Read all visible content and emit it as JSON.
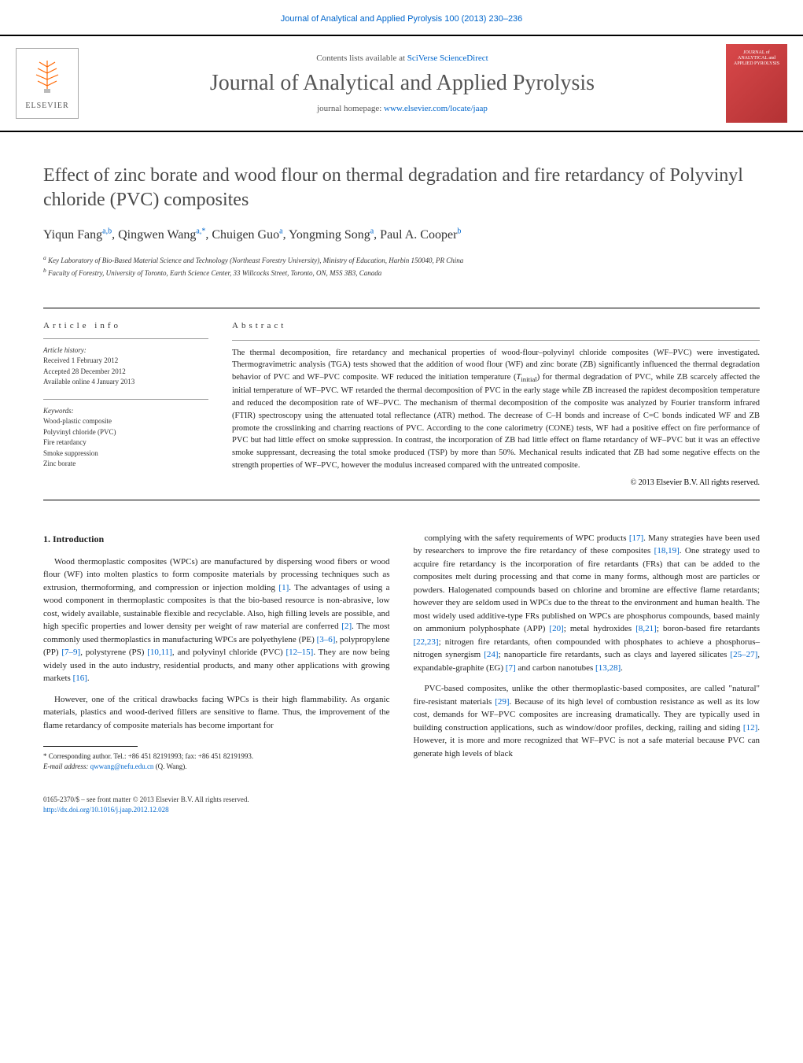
{
  "header": {
    "citation": "Journal of Analytical and Applied Pyrolysis 100 (2013) 230–236",
    "contents_prefix": "Contents lists available at ",
    "contents_link": "SciVerse ScienceDirect",
    "journal_name": "Journal of Analytical and Applied Pyrolysis",
    "homepage_prefix": "journal homepage: ",
    "homepage_url": "www.elsevier.com/locate/jaap",
    "publisher": "ELSEVIER",
    "cover_text": "JOURNAL of ANALYTICAL and APPLIED PYROLYSIS"
  },
  "article": {
    "title": "Effect of zinc borate and wood flour on thermal degradation and fire retardancy of Polyvinyl chloride (PVC) composites",
    "authors_html": "Yiqun Fang",
    "author_list": [
      {
        "name": "Yiqun Fang",
        "sup": "a,b"
      },
      {
        "name": "Qingwen Wang",
        "sup": "a,*"
      },
      {
        "name": "Chuigen Guo",
        "sup": "a"
      },
      {
        "name": "Yongming Song",
        "sup": "a"
      },
      {
        "name": "Paul A. Cooper",
        "sup": "b"
      }
    ],
    "affiliations": [
      "Key Laboratory of Bio-Based Material Science and Technology (Northeast Forestry University), Ministry of Education, Harbin 150040, PR China",
      "Faculty of Forestry, University of Toronto, Earth Science Center, 33 Willcocks Street, Toronto, ON, M5S 3B3, Canada"
    ]
  },
  "info": {
    "heading": "article info",
    "history_label": "Article history:",
    "received": "Received 1 February 2012",
    "accepted": "Accepted 28 December 2012",
    "online": "Available online 4 January 2013",
    "keywords_label": "Keywords:",
    "keywords": [
      "Wood-plastic composite",
      "Polyvinyl chloride (PVC)",
      "Fire retardancy",
      "Smoke suppression",
      "Zinc borate"
    ]
  },
  "abstract": {
    "heading": "abstract",
    "text": "The thermal decomposition, fire retardancy and mechanical properties of wood-flour–polyvinyl chloride composites (WF–PVC) were investigated. Thermogravimetric analysis (TGA) tests showed that the addition of wood flour (WF) and zinc borate (ZB) significantly influenced the thermal degradation behavior of PVC and WF–PVC composite. WF reduced the initiation temperature (Tinitial) for thermal degradation of PVC, while ZB scarcely affected the initial temperature of WF–PVC. WF retarded the thermal decomposition of PVC in the early stage while ZB increased the rapidest decomposition temperature and reduced the decomposition rate of WF–PVC. The mechanism of thermal decomposition of the composite was analyzed by Fourier transform infrared (FTIR) spectroscopy using the attenuated total reflectance (ATR) method. The decrease of C–H bonds and increase of C=C bonds indicated WF and ZB promote the crosslinking and charring reactions of PVC. According to the cone calorimetry (CONE) tests, WF had a positive effect on fire performance of PVC but had little effect on smoke suppression. In contrast, the incorporation of ZB had little effect on flame retardancy of WF–PVC but it was an effective smoke suppressant, decreasing the total smoke produced (TSP) by more than 50%. Mechanical results indicated that ZB had some negative effects on the strength properties of WF–PVC, however the modulus increased compared with the untreated composite.",
    "copyright": "© 2013 Elsevier B.V. All rights reserved."
  },
  "body": {
    "section_num": "1.",
    "section_title": "Introduction",
    "left_paras": [
      "Wood thermoplastic composites (WPCs) are manufactured by dispersing wood fibers or wood flour (WF) into molten plastics to form composite materials by processing techniques such as extrusion, thermoforming, and compression or injection molding [1]. The advantages of using a wood component in thermoplastic composites is that the bio-based resource is non-abrasive, low cost, widely available, sustainable flexible and recyclable. Also, high filling levels are possible, and high specific properties and lower density per weight of raw material are conferred [2]. The most commonly used thermoplastics in manufacturing WPCs are polyethylene (PE) [3–6], polypropylene (PP) [7–9], polystyrene (PS) [10,11], and polyvinyl chloride (PVC) [12–15]. They are now being widely used in the auto industry, residential products, and many other applications with growing markets [16].",
      "However, one of the critical drawbacks facing WPCs is their high flammability. As organic materials, plastics and wood-derived fillers are sensitive to flame. Thus, the improvement of the flame retardancy of composite materials has become important for"
    ],
    "right_paras": [
      "complying with the safety requirements of WPC products [17]. Many strategies have been used by researchers to improve the fire retardancy of these composites [18,19]. One strategy used to acquire fire retardancy is the incorporation of fire retardants (FRs) that can be added to the composites melt during processing and that come in many forms, although most are particles or powders. Halogenated compounds based on chlorine and bromine are effective flame retardants; however they are seldom used in WPCs due to the threat to the environment and human health. The most widely used additive-type FRs published on WPCs are phosphorus compounds, based mainly on ammonium polyphosphate (APP) [20]; metal hydroxides [8,21]; boron-based fire retardants [22,23]; nitrogen fire retardants, often compounded with phosphates to achieve a phosphorus–nitrogen synergism [24]; nanoparticle fire retardants, such as clays and layered silicates [25–27], expandable-graphite (EG) [7] and carbon nanotubes [13,28].",
      "PVC-based composites, unlike the other thermoplastic-based composites, are called \"natural\" fire-resistant materials [29]. Because of its high level of combustion resistance as well as its low cost, demands for WF–PVC composites are increasing dramatically. They are typically used in building construction applications, such as window/door profiles, decking, railing and siding [12]. However, it is more and more recognized that WF–PVC is not a safe material because PVC can generate high levels of black"
    ]
  },
  "footnote": {
    "marker": "*",
    "text": "Corresponding author. Tel.: +86 451 82191993; fax: +86 451 82191993.",
    "email_label": "E-mail address:",
    "email": "qwwang@nefu.edu.cn",
    "email_suffix": "(Q. Wang)."
  },
  "footer": {
    "issn": "0165-2370/$ – see front matter © 2013 Elsevier B.V. All rights reserved.",
    "doi": "http://dx.doi.org/10.1016/j.jaap.2012.12.028"
  },
  "colors": {
    "link": "#0066cc",
    "text": "#222222",
    "heading": "#4a4a4a",
    "elsevier_orange": "#ff6600",
    "cover_red": "#d9484a"
  }
}
